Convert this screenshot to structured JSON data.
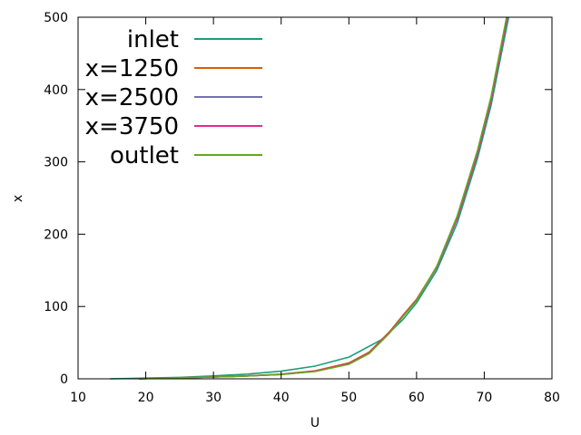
{
  "chart_data": {
    "type": "line",
    "xlabel": "U",
    "ylabel": "x",
    "xlim": [
      10,
      80
    ],
    "ylim": [
      0,
      500
    ],
    "xticks": [
      10,
      20,
      30,
      40,
      50,
      60,
      70,
      80
    ],
    "yticks": [
      0,
      100,
      200,
      300,
      400,
      500
    ],
    "legend_position": "top-left",
    "grid": false,
    "series": [
      {
        "name": "inlet",
        "color": "#1b9e77",
        "x": [
          14.7,
          20,
          25,
          30,
          35,
          40,
          45,
          50,
          55,
          58,
          60,
          63,
          66,
          69,
          71,
          73.6
        ],
        "y": [
          0,
          1,
          2,
          4,
          6.5,
          10.5,
          17.5,
          30,
          55,
          82,
          105,
          150,
          215,
          305,
          378,
          500
        ]
      },
      {
        "name": "x=1250",
        "color": "#d95f02",
        "x": [
          19,
          25,
          30,
          35,
          40,
          45,
          50,
          53,
          56,
          58,
          60,
          63,
          66,
          69,
          71,
          73.4
        ],
        "y": [
          0,
          1.5,
          2.5,
          4,
          6.5,
          11,
          22,
          37,
          65,
          88,
          110,
          155,
          222,
          312,
          385,
          500
        ]
      },
      {
        "name": "x=2500",
        "color": "#7570b3",
        "x": [
          19,
          25,
          30,
          35,
          40,
          45,
          50,
          53,
          56,
          58,
          60,
          63,
          66,
          69,
          71,
          73.4
        ],
        "y": [
          0,
          1.5,
          2.5,
          4,
          6,
          10.5,
          21,
          36,
          64,
          87,
          109,
          154,
          221,
          311,
          384,
          500
        ]
      },
      {
        "name": "x=3750",
        "color": "#e7298a",
        "x": [
          19,
          25,
          30,
          35,
          40,
          45,
          50,
          53,
          56,
          58,
          60,
          63,
          66,
          69,
          71,
          73.4
        ],
        "y": [
          0,
          1.5,
          2.5,
          4,
          6,
          10.5,
          21,
          36,
          64,
          87,
          109,
          155,
          222,
          312,
          386,
          500
        ]
      },
      {
        "name": "outlet",
        "color": "#66a61e",
        "x": [
          19,
          25,
          30,
          35,
          40,
          45,
          50,
          53,
          56,
          58,
          60,
          63,
          66,
          69,
          71,
          73.3
        ],
        "y": [
          0,
          1.5,
          2.5,
          4,
          6,
          10,
          20,
          35,
          63,
          86,
          108,
          156,
          225,
          316,
          390,
          500
        ]
      }
    ]
  }
}
